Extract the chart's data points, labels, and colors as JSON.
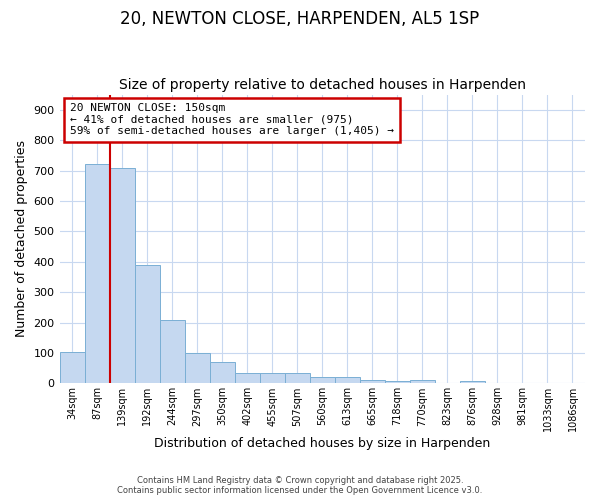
{
  "title": "20, NEWTON CLOSE, HARPENDEN, AL5 1SP",
  "subtitle": "Size of property relative to detached houses in Harpenden",
  "xlabel": "Distribution of detached houses by size in Harpenden",
  "ylabel": "Number of detached properties",
  "categories": [
    "34sqm",
    "87sqm",
    "139sqm",
    "192sqm",
    "244sqm",
    "297sqm",
    "350sqm",
    "402sqm",
    "455sqm",
    "507sqm",
    "560sqm",
    "613sqm",
    "665sqm",
    "718sqm",
    "770sqm",
    "823sqm",
    "876sqm",
    "928sqm",
    "981sqm",
    "1033sqm",
    "1086sqm"
  ],
  "values": [
    102,
    720,
    710,
    390,
    210,
    100,
    70,
    33,
    33,
    33,
    20,
    20,
    10,
    8,
    10,
    0,
    8,
    0,
    0,
    0,
    0
  ],
  "bar_color": "#c5d8f0",
  "bar_edge_color": "#7aafd4",
  "background_color": "#ffffff",
  "grid_color": "#c8d8f0",
  "red_line_x": 1.5,
  "annotation_text": "20 NEWTON CLOSE: 150sqm\n← 41% of detached houses are smaller (975)\n59% of semi-detached houses are larger (1,405) →",
  "annotation_box_color": "#ffffff",
  "annotation_border_color": "#cc0000",
  "footer1": "Contains HM Land Registry data © Crown copyright and database right 2025.",
  "footer2": "Contains public sector information licensed under the Open Government Licence v3.0.",
  "ylim": [
    0,
    950
  ],
  "yticks": [
    0,
    100,
    200,
    300,
    400,
    500,
    600,
    700,
    800,
    900
  ],
  "title_fontsize": 12,
  "subtitle_fontsize": 10,
  "xlabel_fontsize": 9,
  "ylabel_fontsize": 9,
  "tick_fontsize": 8,
  "annotation_fontsize": 8
}
